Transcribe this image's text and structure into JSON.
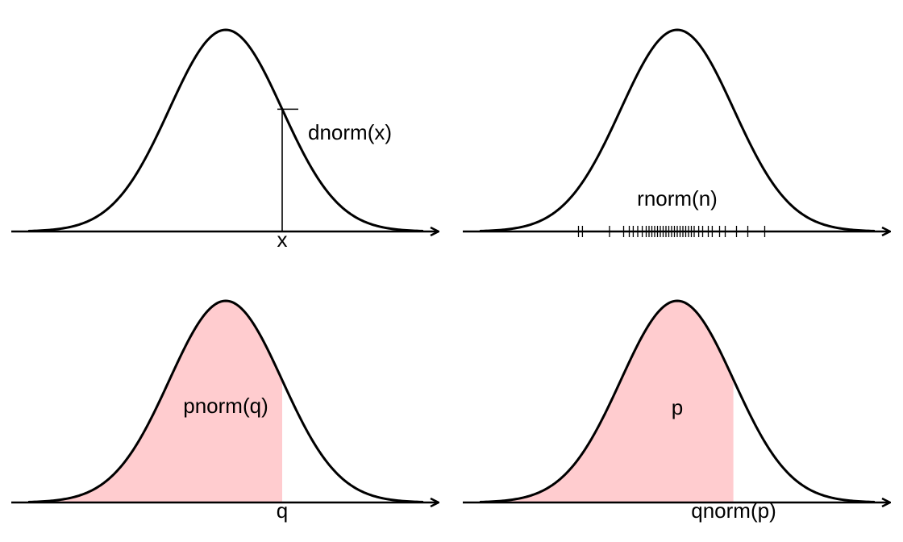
{
  "title": "",
  "colors": {
    "curve": "#000000",
    "axis": "#000000",
    "shade": "#ffcccf",
    "background": "#ffffff"
  },
  "panels": [
    {
      "id": "density",
      "function_label": "dnorm(x)",
      "axis_label": "x",
      "x_value": 1.0
    },
    {
      "id": "random",
      "function_label": "rnorm(n)",
      "sample_values": [
        -1.75,
        -1.68,
        -1.2,
        -0.95,
        -0.85,
        -0.78,
        -0.7,
        -0.62,
        -0.55,
        -0.5,
        -0.45,
        -0.4,
        -0.35,
        -0.3,
        -0.25,
        -0.2,
        -0.15,
        -0.1,
        -0.05,
        0.0,
        0.05,
        0.1,
        0.15,
        0.2,
        0.25,
        0.3,
        0.38,
        0.45,
        0.55,
        0.62,
        0.75,
        0.85,
        1.05,
        1.25,
        1.55
      ]
    },
    {
      "id": "cumulative",
      "function_label": "pnorm(q)",
      "axis_label": "q",
      "q_value": 1.0
    },
    {
      "id": "quantile",
      "function_label": "p",
      "axis_label": "qnorm(p)",
      "p_value": 0.84
    }
  ]
}
